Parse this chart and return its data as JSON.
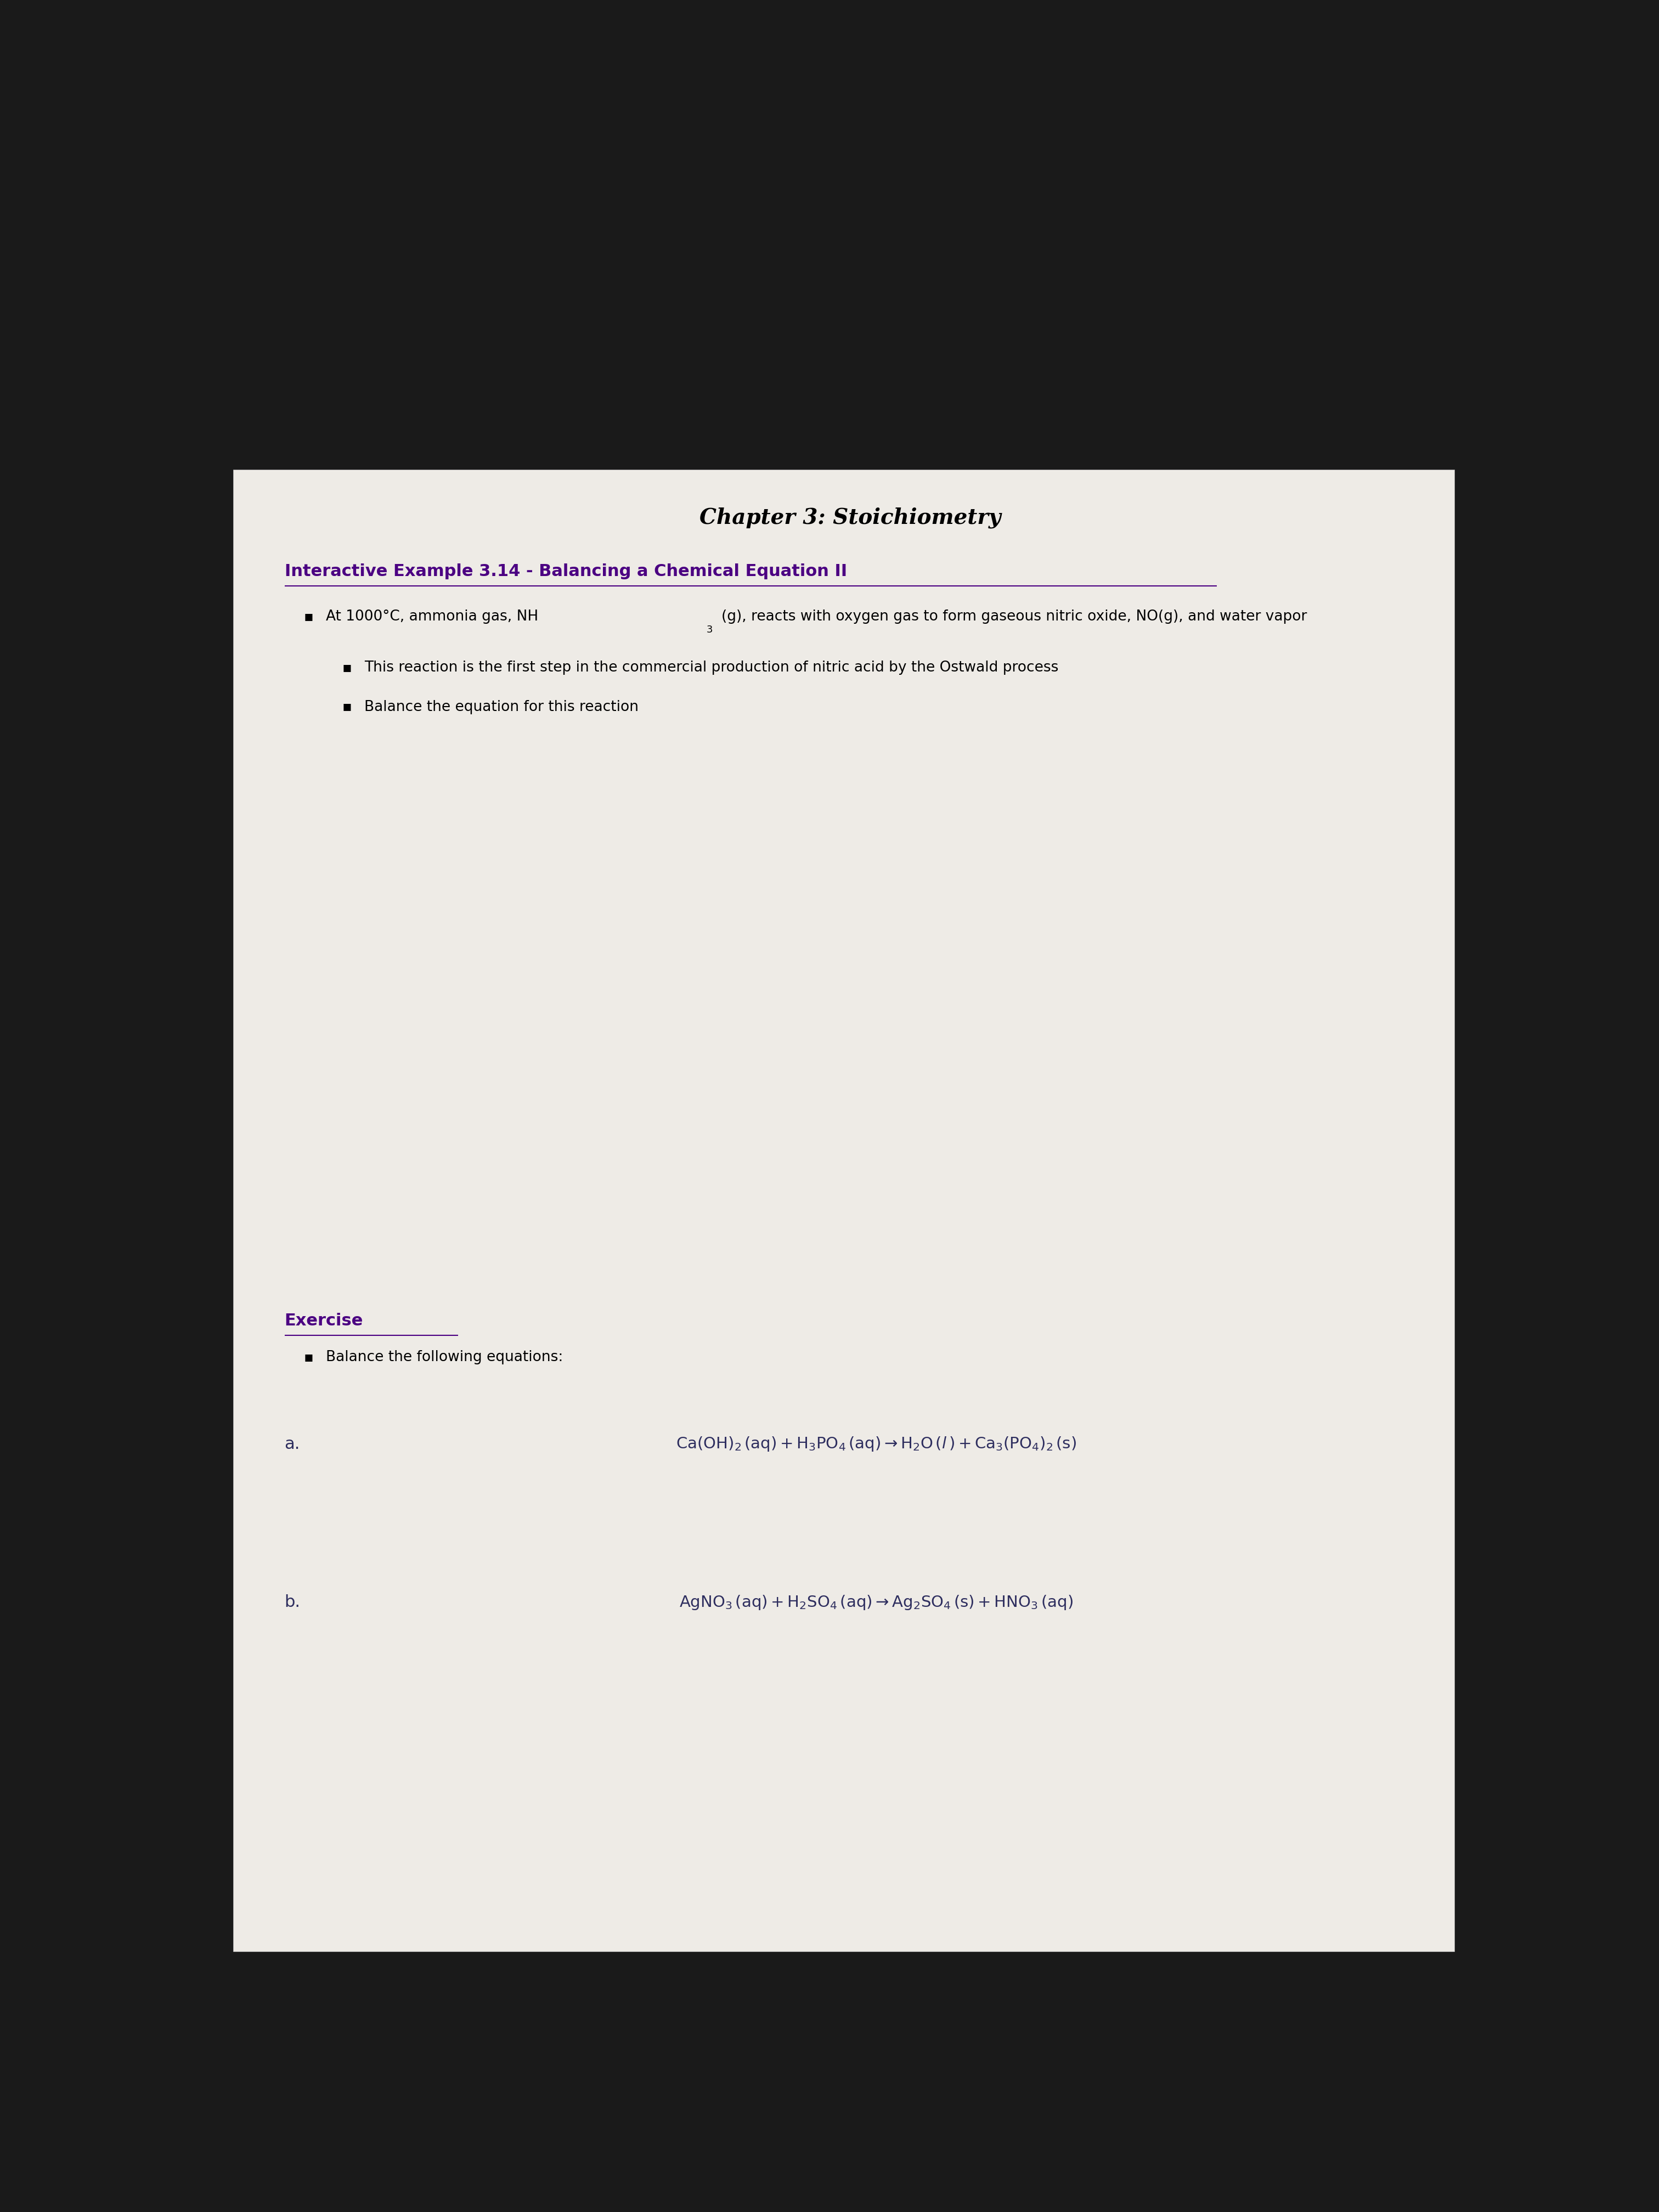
{
  "title": "Chapter 3: Stoichiometry",
  "title_color": "#000000",
  "title_fontsize": 28,
  "heading": "Interactive Example 3.14 - Balancing a Chemical Equation II",
  "heading_color": "#4B0082",
  "heading_fontsize": 22,
  "bullet1a": "At 1000°C, ammonia gas, NH",
  "bullet1_sub": "3",
  "bullet1b": "(g), reacts with oxygen gas to form gaseous nitric oxide, NO(g), and water vapor",
  "bullet1_color": "#000000",
  "bullet1_fontsize": 19,
  "sub_bullet1": "This reaction is the first step in the commercial production of nitric acid by the Ostwald process",
  "sub_bullet1_color": "#000000",
  "sub_bullet1_fontsize": 19,
  "sub_bullet2": "Balance the equation for this reaction",
  "sub_bullet2_color": "#000000",
  "sub_bullet2_fontsize": 19,
  "exercise_label": "Exercise",
  "exercise_color": "#4B0082",
  "exercise_fontsize": 22,
  "exercise_bullet": "Balance the following equations:",
  "exercise_bullet_fontsize": 19,
  "eq_a_label": "a.",
  "eq_b_label": "b.",
  "eq_fontsize": 22,
  "paper_color": "#eeebe6",
  "dark_top_color": "#1a1a1a",
  "text_eq_color": "#2d2d5e"
}
